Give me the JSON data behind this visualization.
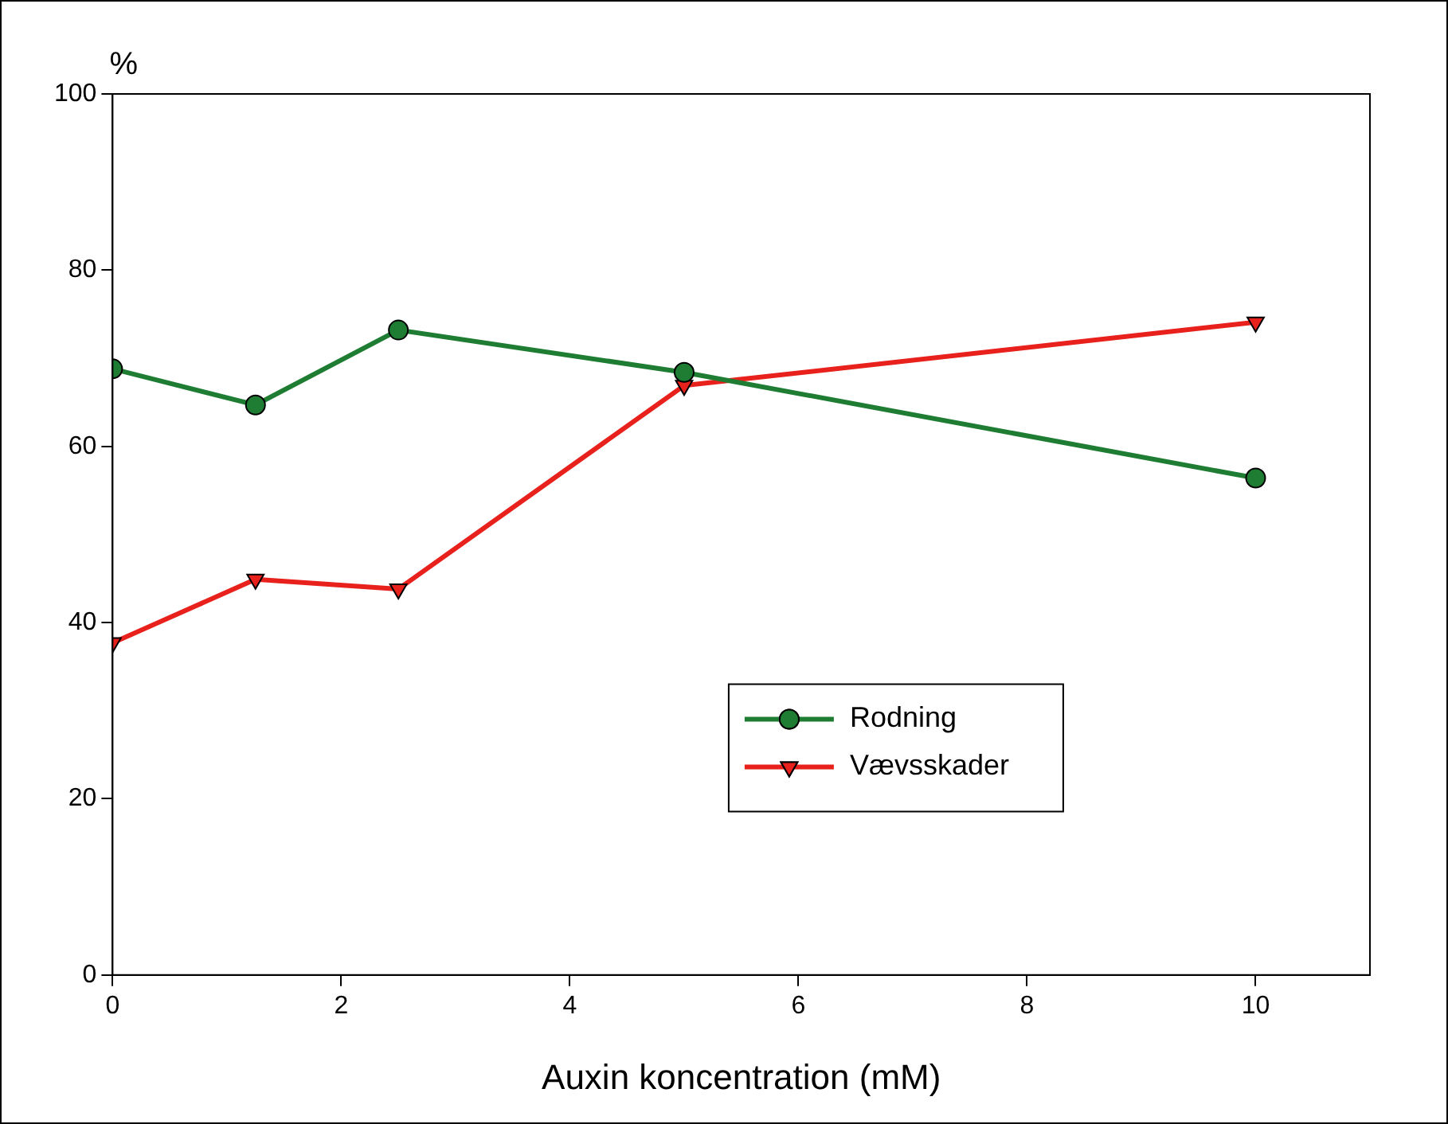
{
  "chart_data": {
    "type": "line",
    "ylabel": "%",
    "xlabel": "Auxin koncentration (mM)",
    "xlim": [
      0,
      11
    ],
    "xticks": [
      0,
      2,
      4,
      6,
      8,
      10
    ],
    "ylim": [
      0,
      100
    ],
    "yticks": [
      0,
      20,
      40,
      60,
      80,
      100
    ],
    "grid": false,
    "legend": "right",
    "line_style": "solid",
    "x": [
      0,
      1.25,
      2.5,
      5,
      10
    ],
    "series": [
      {
        "name": "Rodning",
        "color": "#1e7d32",
        "marker": "circle",
        "values": [
          68.8,
          64.7,
          73.2,
          68.4,
          56.4
        ]
      },
      {
        "name": "Vævsskader",
        "color": "#e8211d",
        "marker": "triangle",
        "values": [
          37.7,
          44.9,
          43.8,
          66.9,
          74.1
        ]
      }
    ]
  }
}
